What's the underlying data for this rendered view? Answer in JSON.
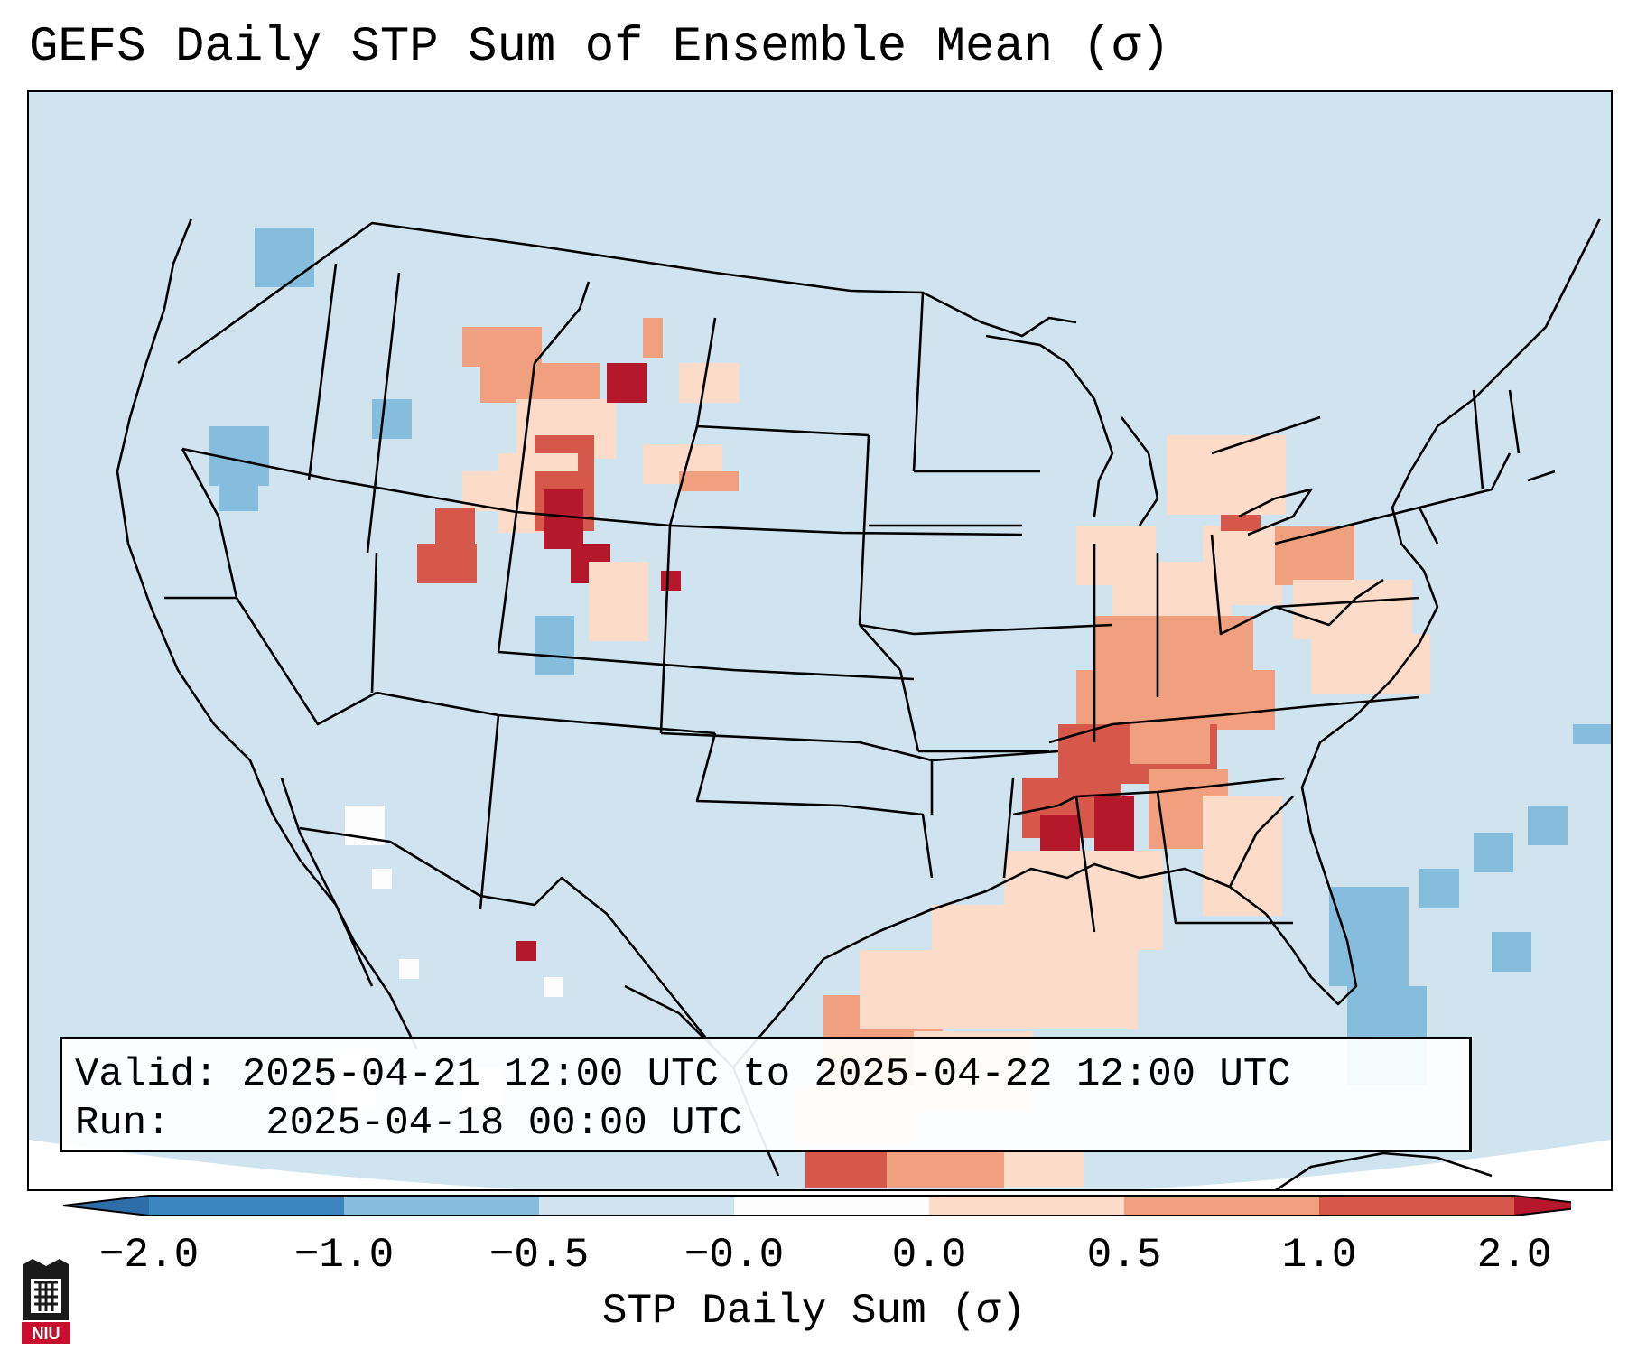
{
  "title": "GEFS Daily STP Sum of Ensemble Mean (σ)",
  "info": {
    "valid_label": "Valid:",
    "valid_value": "2025-04-21 12:00 UTC to 2025-04-22 12:00 UTC",
    "run_label": "Run:",
    "run_value": "2025-04-18 00:00 UTC"
  },
  "colorbar": {
    "label": "STP Daily Sum (σ)",
    "ticks": [
      "−2.0",
      "−1.0",
      "−0.5",
      "−0.0",
      "0.0",
      "0.5",
      "1.0",
      "2.0"
    ],
    "colors": [
      "#3a85c0",
      "#86bcdc",
      "#d0e4ef",
      "#fdfdfd",
      "#fcdcc9",
      "#f1a07f",
      "#d5584a"
    ],
    "extend_low_color": "#2d6ea8",
    "extend_high_color": "#b5182b"
  },
  "map": {
    "background_color": "#d0e4ef",
    "projection": "Lambert Conformal, CONUS",
    "region": "Contiguous United States"
  },
  "logo": {
    "text": "NIU"
  }
}
